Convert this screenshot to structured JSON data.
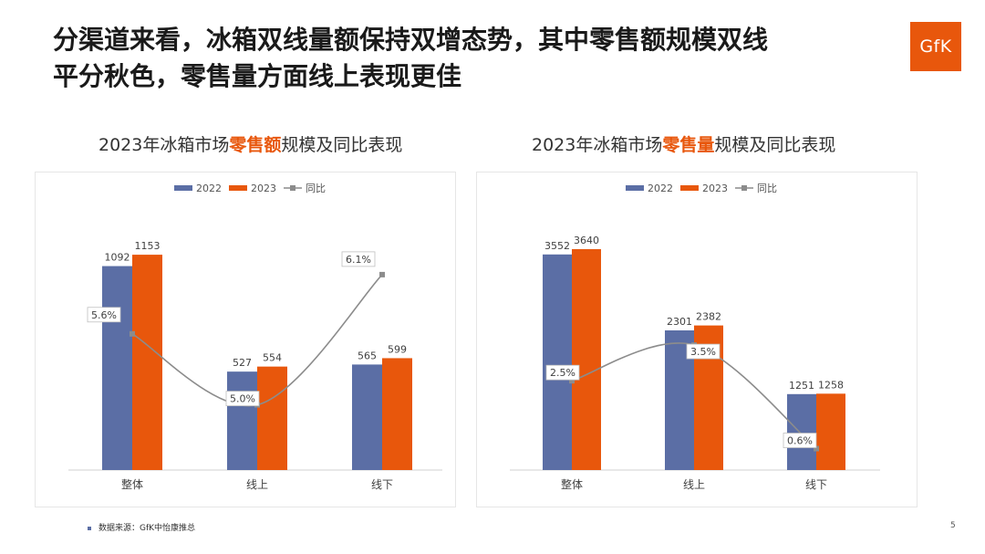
{
  "headline": {
    "line1": "分渠道来看，冰箱双线量额保持双增态势，其中零售额规模双线",
    "line2": "平分秋色，零售量方面线上表现更佳"
  },
  "logo_text": "GfK",
  "chart_data": [
    {
      "type": "bar",
      "title_pre": "2023年冰箱市场",
      "title_highlight": "零售额",
      "title_post": "规模及同比表现",
      "categories": [
        "整体",
        "线上",
        "线下"
      ],
      "series": [
        {
          "name": "2022",
          "values": [
            1092,
            527,
            565
          ],
          "color": "#5b6ea5"
        },
        {
          "name": "2023",
          "values": [
            1153,
            554,
            599
          ],
          "color": "#e8570c"
        }
      ],
      "line": {
        "name": "同比",
        "values": [
          5.6,
          5.0,
          6.1
        ],
        "labels": [
          "5.6%",
          "5.0%",
          "6.1%"
        ],
        "color": "#8c8c8c",
        "range": [
          4.45,
          6.5
        ]
      },
      "ylim": [
        0,
        1300
      ],
      "legend_position": "top-center",
      "grid": false
    },
    {
      "type": "bar",
      "title_pre": "2023年冰箱市场",
      "title_highlight": "零售量",
      "title_post": "规模及同比表现",
      "categories": [
        "整体",
        "线上",
        "线下"
      ],
      "series": [
        {
          "name": "2022",
          "values": [
            3552,
            2301,
            1251
          ],
          "color": "#5b6ea5"
        },
        {
          "name": "2023",
          "values": [
            3640,
            2382,
            1258
          ],
          "color": "#e8570c"
        }
      ],
      "line": {
        "name": "同比",
        "values": [
          2.5,
          3.5,
          0.6
        ],
        "labels": [
          "2.5%",
          "3.5%",
          "0.6%"
        ],
        "color": "#8c8c8c",
        "range": [
          0.0,
          6.8
        ]
      },
      "ylim": [
        0,
        4000
      ],
      "legend_position": "top-center",
      "grid": false
    }
  ],
  "footer": {
    "source": "数据来源：GfK中怡康推总"
  },
  "page_number": "5"
}
